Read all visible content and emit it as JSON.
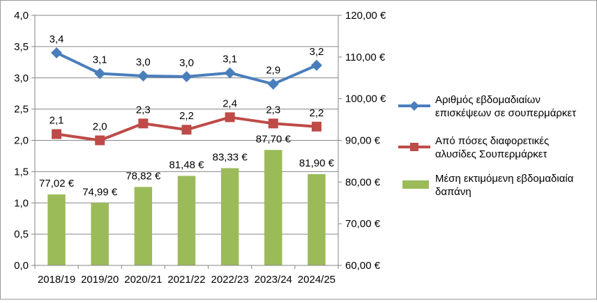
{
  "chart_data": {
    "type": "bar+line",
    "categories": [
      "2018/19",
      "2019/20",
      "2020/21",
      "2021/22",
      "2022/23",
      "2023/24",
      "2024/25"
    ],
    "left_axis": {
      "min": 0,
      "max": 4,
      "step": 0.5,
      "tick_labels": [
        "0,0",
        "0,5",
        "1,0",
        "1,5",
        "2,0",
        "2,5",
        "3,0",
        "3,5",
        "4,0"
      ]
    },
    "right_axis": {
      "min": 60,
      "max": 120,
      "step": 10,
      "tick_labels": [
        "60,00 €",
        "70,00 €",
        "80,00 €",
        "90,00 €",
        "100,00 €",
        "110,00 €",
        "120,00 €"
      ]
    },
    "series": [
      {
        "name_lines": [
          "Αριθμός εβδομαδιαίων",
          "επισκέψεων σε σουπερμάρκετ"
        ],
        "kind": "line",
        "axis": "left",
        "color": "#4a7ebb",
        "marker": "diamond",
        "values": [
          3.4,
          3.07,
          3.03,
          3.02,
          3.08,
          2.9,
          3.2
        ],
        "labels": [
          "3,4",
          "3,1",
          "3,0",
          "3,0",
          "3,1",
          "2,9",
          "3,2"
        ]
      },
      {
        "name_lines": [
          "Από πόσες διαφορετικές",
          "αλυσίδες Σουπερμάρκετ"
        ],
        "kind": "line",
        "axis": "left",
        "color": "#be4b48",
        "marker": "square",
        "values": [
          2.1,
          2.0,
          2.27,
          2.17,
          2.37,
          2.27,
          2.22
        ],
        "labels": [
          "2,1",
          "2,0",
          "2,3",
          "2,2",
          "2,4",
          "2,3",
          "2,2"
        ]
      },
      {
        "name_lines": [
          "Μέση εκτιμόμενη εβδομαδιαία",
          "δαπάνη"
        ],
        "kind": "bar",
        "axis": "right",
        "color": "#9bbb59",
        "values": [
          77.02,
          74.99,
          78.82,
          81.48,
          83.33,
          87.7,
          81.9
        ],
        "labels": [
          "77,02 €",
          "74,99 €",
          "78,82 €",
          "81,48 €",
          "83,33 €",
          "87,70 €",
          "81,90 €"
        ]
      }
    ],
    "grid": true,
    "legend_position": "right"
  }
}
